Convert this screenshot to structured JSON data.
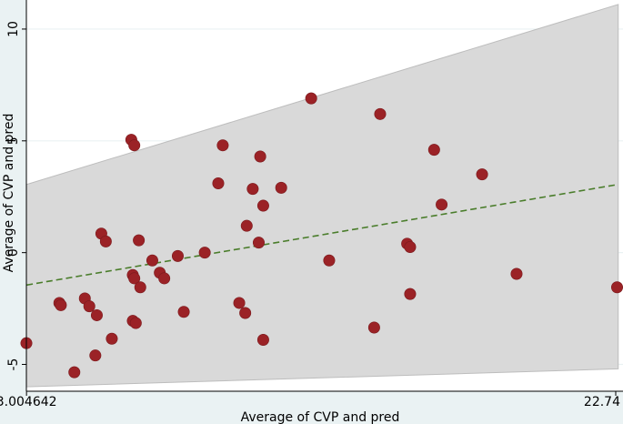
{
  "chart_data": {
    "type": "scatter",
    "title": "",
    "xlabel": "Average of CVP and pred",
    "ylabel": "Average of CVP and pred",
    "xlim": [
      3.0,
      22.9
    ],
    "ylim": [
      -6.2,
      11.3
    ],
    "x_ticks": [
      "3.004642",
      "22.74"
    ],
    "x_tick_values": [
      3.004642,
      22.74
    ],
    "y_ticks": [
      "10",
      "5",
      "0",
      "-5"
    ],
    "y_tick_values": [
      10,
      5,
      0,
      -5
    ],
    "grid": "horizontal",
    "legend": "none",
    "colors": {
      "background_strip": "#eaf2f3",
      "plot_background": "#ffffff",
      "band_fill": "#d9d9d9",
      "band_edge": "#bdbdbd",
      "point_fill": "#9b2226",
      "trend_line": "#4a7d2b",
      "gridline": "#eaf2f3"
    },
    "fit_line": {
      "x": [
        3.004642,
        22.74
      ],
      "y": [
        -1.45,
        3.05
      ],
      "style": "dashed"
    },
    "confidence_band": {
      "x": [
        3.004642,
        22.74
      ],
      "upper": [
        3.05,
        11.1
      ],
      "lower": [
        -6.0,
        -5.2
      ]
    },
    "points": [
      {
        "x": 3.0,
        "y": -4.05
      },
      {
        "x": 4.1,
        "y": -2.25
      },
      {
        "x": 4.15,
        "y": -2.35
      },
      {
        "x": 4.6,
        "y": -5.35
      },
      {
        "x": 4.95,
        "y": -2.05
      },
      {
        "x": 5.1,
        "y": -2.4
      },
      {
        "x": 5.3,
        "y": -4.6
      },
      {
        "x": 5.35,
        "y": -2.8
      },
      {
        "x": 5.5,
        "y": 0.85
      },
      {
        "x": 5.65,
        "y": 0.5
      },
      {
        "x": 5.85,
        "y": -3.85
      },
      {
        "x": 6.5,
        "y": 5.05
      },
      {
        "x": 6.6,
        "y": 4.8
      },
      {
        "x": 6.55,
        "y": -1.0
      },
      {
        "x": 6.6,
        "y": -1.15
      },
      {
        "x": 6.55,
        "y": -3.05
      },
      {
        "x": 6.65,
        "y": -3.15
      },
      {
        "x": 6.75,
        "y": 0.55
      },
      {
        "x": 6.8,
        "y": -1.55
      },
      {
        "x": 7.2,
        "y": -0.35
      },
      {
        "x": 7.45,
        "y": -0.9
      },
      {
        "x": 7.6,
        "y": -1.15
      },
      {
        "x": 8.05,
        "y": -0.15
      },
      {
        "x": 8.25,
        "y": -2.65
      },
      {
        "x": 8.95,
        "y": 0.0
      },
      {
        "x": 9.4,
        "y": 3.1
      },
      {
        "x": 9.55,
        "y": 4.8
      },
      {
        "x": 10.1,
        "y": -2.25
      },
      {
        "x": 10.3,
        "y": -2.7
      },
      {
        "x": 10.35,
        "y": 1.2
      },
      {
        "x": 10.55,
        "y": 2.85
      },
      {
        "x": 10.75,
        "y": 0.45
      },
      {
        "x": 10.8,
        "y": 4.3
      },
      {
        "x": 10.9,
        "y": 2.1
      },
      {
        "x": 10.9,
        "y": -3.9
      },
      {
        "x": 11.5,
        "y": 2.9
      },
      {
        "x": 12.5,
        "y": 6.9
      },
      {
        "x": 13.1,
        "y": -0.35
      },
      {
        "x": 14.6,
        "y": -3.35
      },
      {
        "x": 14.8,
        "y": 6.2
      },
      {
        "x": 15.7,
        "y": 0.4
      },
      {
        "x": 15.8,
        "y": 0.25
      },
      {
        "x": 15.8,
        "y": -1.85
      },
      {
        "x": 16.6,
        "y": 4.6
      },
      {
        "x": 16.85,
        "y": 2.15
      },
      {
        "x": 18.2,
        "y": 3.5
      },
      {
        "x": 19.35,
        "y": -0.95
      },
      {
        "x": 22.75,
        "y": -1.55
      }
    ]
  }
}
